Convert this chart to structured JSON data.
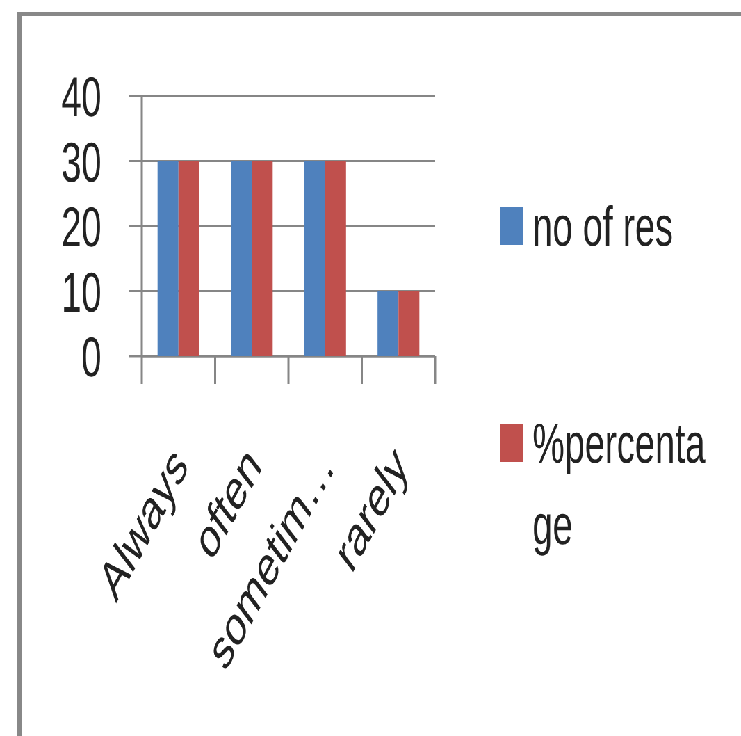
{
  "chart_data": {
    "type": "bar",
    "categories": [
      "Always",
      "often",
      "sometim…",
      "rarely"
    ],
    "series": [
      {
        "name": "no of res",
        "color": "#4f81bd",
        "values": [
          30,
          30,
          30,
          10
        ]
      },
      {
        "name": "%percentage",
        "color": "#c0504d",
        "values": [
          30,
          30,
          30,
          10
        ]
      }
    ],
    "ylim": [
      0,
      40
    ],
    "yticks": [
      0,
      10,
      20,
      30,
      40
    ],
    "grid": "y",
    "legend": "right"
  }
}
